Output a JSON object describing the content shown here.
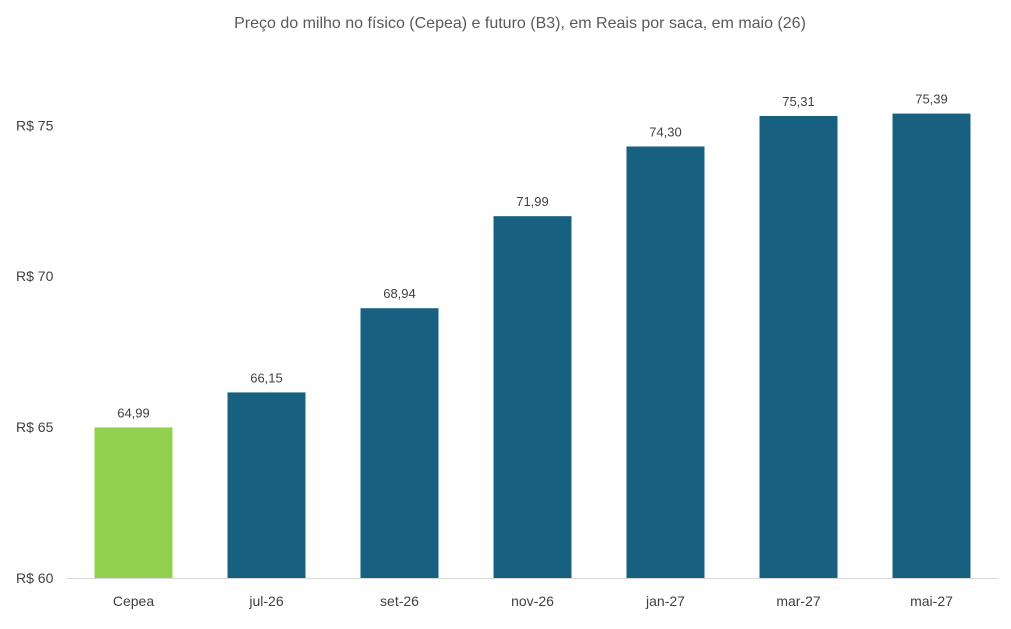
{
  "chart_data": {
    "type": "bar",
    "title": "Preço do milho no físico (Cepea) e futuro (B3), em Reais por saca, em maio (26)",
    "xlabel": "",
    "ylabel": "",
    "categories": [
      "Cepea",
      "jul-26",
      "set-26",
      "nov-26",
      "jan-27",
      "mar-27",
      "mai-27"
    ],
    "values": [
      64.99,
      66.15,
      68.94,
      71.99,
      74.3,
      75.31,
      75.39
    ],
    "value_labels": [
      "64,99",
      "66,15",
      "68,94",
      "71,99",
      "74,30",
      "75,31",
      "75,39"
    ],
    "ylim": [
      60,
      77
    ],
    "yticks": [
      60,
      65,
      70,
      75
    ],
    "ytick_labels": [
      "R$ 60",
      "R$ 65",
      "R$ 70",
      "R$ 75"
    ],
    "bar_colors": [
      "#92d050",
      "#17607f",
      "#17607f",
      "#17607f",
      "#17607f",
      "#17607f",
      "#17607f"
    ],
    "grid": false,
    "legend": "none"
  }
}
